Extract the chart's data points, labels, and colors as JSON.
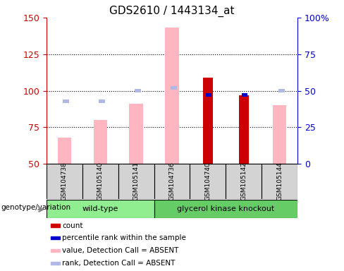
{
  "title": "GDS2610 / 1443134_at",
  "samples": [
    "GSM104738",
    "GSM105140",
    "GSM105141",
    "GSM104736",
    "GSM104740",
    "GSM105142",
    "GSM105144"
  ],
  "ylim_left": [
    50,
    150
  ],
  "ylim_right": [
    0,
    100
  ],
  "yticks_left": [
    50,
    75,
    100,
    125,
    150
  ],
  "yticks_right": [
    0,
    25,
    50,
    75,
    100
  ],
  "ytick_labels_right": [
    "0",
    "25",
    "50",
    "75",
    "100%"
  ],
  "grid_lines": [
    75,
    100,
    125
  ],
  "value_absent": [
    68,
    80,
    91,
    143,
    null,
    null,
    90
  ],
  "rank_absent_pct": [
    43,
    43,
    50,
    52,
    null,
    null,
    50
  ],
  "count": [
    null,
    null,
    null,
    null,
    109,
    97,
    null
  ],
  "percentile_rank_pct": [
    null,
    null,
    null,
    null,
    47,
    47,
    null
  ],
  "background_color": "#ffffff",
  "left_axis_color": "#cc0000",
  "right_axis_color": "#0000cc",
  "color_value_absent": "#FFB6C1",
  "color_rank_absent": "#b0b8e8",
  "color_count": "#cc0000",
  "color_percentile": "#0000cc",
  "legend_items": [
    {
      "label": "count",
      "color": "#cc0000"
    },
    {
      "label": "percentile rank within the sample",
      "color": "#0000cc"
    },
    {
      "label": "value, Detection Call = ABSENT",
      "color": "#FFB6C1"
    },
    {
      "label": "rank, Detection Call = ABSENT",
      "color": "#b0b8e8"
    }
  ],
  "group_label": "genotype/variation",
  "wt_color": "#90EE90",
  "gk_color": "#66CC66",
  "gray_color": "#d3d3d3"
}
